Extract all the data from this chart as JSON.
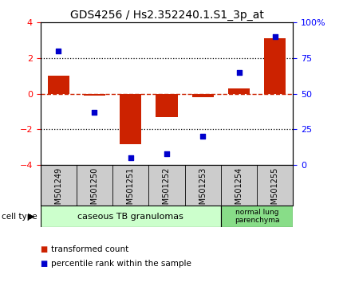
{
  "title": "GDS4256 / Hs2.352240.1.S1_3p_at",
  "samples": [
    "GSM501249",
    "GSM501250",
    "GSM501251",
    "GSM501252",
    "GSM501253",
    "GSM501254",
    "GSM501255"
  ],
  "transformed_count": [
    1.0,
    -0.12,
    -2.85,
    -1.3,
    -0.2,
    0.3,
    3.1
  ],
  "percentile_rank": [
    80,
    37,
    5,
    8,
    20,
    65,
    90
  ],
  "bar_color": "#cc2200",
  "dot_color": "#0000cc",
  "ylim_left": [
    -4,
    4
  ],
  "ylim_right": [
    0,
    100
  ],
  "yticks_left": [
    -4,
    -2,
    0,
    2,
    4
  ],
  "yticks_right": [
    0,
    25,
    50,
    75,
    100
  ],
  "yticklabels_right": [
    "0",
    "25",
    "50",
    "75",
    "100%"
  ],
  "dotted_lines": [
    -2,
    2
  ],
  "cell_type_groups": [
    {
      "label": "caseous TB granulomas",
      "n": 5,
      "color": "#ccffcc"
    },
    {
      "label": "normal lung\nparenchyma",
      "n": 2,
      "color": "#88dd88"
    }
  ],
  "cell_type_label": "cell type",
  "legend_items": [
    {
      "label": "transformed count",
      "color": "#cc2200"
    },
    {
      "label": "percentile rank within the sample",
      "color": "#0000cc"
    }
  ],
  "sample_box_color": "#cccccc",
  "title_fontsize": 10,
  "tick_fontsize": 8,
  "label_fontsize": 8,
  "sample_fontsize": 7
}
